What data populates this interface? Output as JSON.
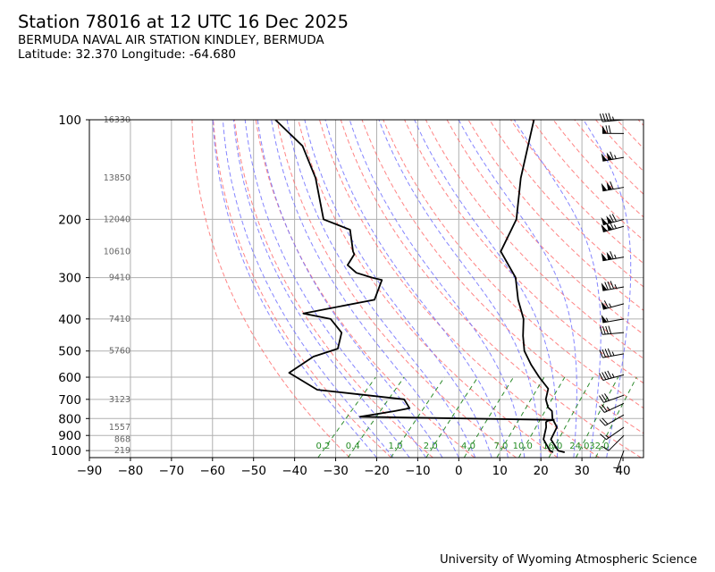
{
  "header": {
    "title": "Station 78016 at 12 UTC 16 Dec 2025",
    "station": "BERMUDA NAVAL AIR STATION KINDLEY, BERMUDA",
    "location": "Latitude: 32.370 Longitude: -64.680"
  },
  "footer": {
    "credit": "University of Wyoming Atmospheric Science"
  },
  "chart_data": {
    "type": "line",
    "chart_kind": "skew-T log-P sounding",
    "x": {
      "label": "",
      "unit": "°C",
      "lim": [
        -90,
        45
      ],
      "ticks": [
        -90,
        -80,
        -70,
        -60,
        -50,
        -40,
        -30,
        -20,
        -10,
        0,
        10,
        20,
        30,
        40
      ]
    },
    "y": {
      "label": "",
      "unit": "hPa",
      "scale": "log",
      "lim": [
        1050,
        100
      ],
      "ticks": [
        100,
        200,
        300,
        400,
        500,
        600,
        700,
        800,
        900,
        1000
      ]
    },
    "grid": true,
    "colors": {
      "profile": "#000000",
      "dry_adiabat": "#ff6f6f",
      "moist_adiabat": "#7070ff",
      "mixing_ratio": "#2e8b2e",
      "mixing_ratio_label": "#228b22",
      "height_label": "#666666"
    },
    "height_labels": [
      {
        "p": 100,
        "text": "16330"
      },
      {
        "p": 150,
        "text": "13850"
      },
      {
        "p": 200,
        "text": "12040"
      },
      {
        "p": 250,
        "text": "10610"
      },
      {
        "p": 300,
        "text": "9410"
      },
      {
        "p": 400,
        "text": "7410"
      },
      {
        "p": 500,
        "text": "5760"
      },
      {
        "p": 700,
        "text": "3123"
      },
      {
        "p": 850,
        "text": "1557"
      },
      {
        "p": 925,
        "text": "868"
      },
      {
        "p": 1000,
        "text": "219"
      }
    ],
    "mixing_ratio_labels": [
      "0.2",
      "0.4",
      "1.0",
      "2.0",
      "4.0",
      "7.0",
      "10.0",
      "16.0",
      "24.0",
      "32.0"
    ],
    "temperature": [
      {
        "p": 1012,
        "t": 24.5
      },
      {
        "p": 1000,
        "t": 22.5
      },
      {
        "p": 925,
        "t": 18
      },
      {
        "p": 850,
        "t": 16.5
      },
      {
        "p": 800,
        "t": 13.3
      },
      {
        "p": 760,
        "t": 11.4
      },
      {
        "p": 740,
        "t": 9.5
      },
      {
        "p": 700,
        "t": 7
      },
      {
        "p": 650,
        "t": 5
      },
      {
        "p": 600,
        "t": 0
      },
      {
        "p": 550,
        "t": -5
      },
      {
        "p": 500,
        "t": -10
      },
      {
        "p": 450,
        "t": -14
      },
      {
        "p": 400,
        "t": -18
      },
      {
        "p": 350,
        "t": -24
      },
      {
        "p": 300,
        "t": -30
      },
      {
        "p": 250,
        "t": -40
      },
      {
        "p": 200,
        "t": -44
      },
      {
        "p": 150,
        "t": -53
      },
      {
        "p": 100,
        "t": -64
      }
    ],
    "dewpoint": [
      {
        "p": 1012,
        "t": 21.7
      },
      {
        "p": 1000,
        "t": 20.5
      },
      {
        "p": 925,
        "t": 16.2
      },
      {
        "p": 850,
        "t": 13.9
      },
      {
        "p": 820,
        "t": 12.6
      },
      {
        "p": 812,
        "t": 12.7
      },
      {
        "p": 808,
        "t": 14
      },
      {
        "p": 800,
        "t": -7
      },
      {
        "p": 790,
        "t": -34
      },
      {
        "p": 760,
        "t": -27
      },
      {
        "p": 745,
        "t": -24
      },
      {
        "p": 700,
        "t": -27.5
      },
      {
        "p": 655,
        "t": -51
      },
      {
        "p": 582,
        "t": -62
      },
      {
        "p": 520,
        "t": -60
      },
      {
        "p": 492,
        "t": -56
      },
      {
        "p": 440,
        "t": -59
      },
      {
        "p": 400,
        "t": -65
      },
      {
        "p": 385,
        "t": -73
      },
      {
        "p": 350,
        "t": -59
      },
      {
        "p": 305,
        "t": -62
      },
      {
        "p": 300,
        "t": -65
      },
      {
        "p": 290,
        "t": -70
      },
      {
        "p": 275,
        "t": -74
      },
      {
        "p": 255,
        "t": -75
      },
      {
        "p": 250,
        "t": -76
      },
      {
        "p": 215,
        "t": -82
      },
      {
        "p": 200,
        "t": -91
      },
      {
        "p": 150,
        "t": -103
      },
      {
        "p": 120,
        "t": -114
      },
      {
        "p": 100,
        "t": -127
      }
    ],
    "wind_barbs": [
      {
        "p": 100,
        "dir": 265,
        "kt": 45
      },
      {
        "p": 110,
        "dir": 270,
        "kt": 70
      },
      {
        "p": 130,
        "dir": 260,
        "kt": 115
      },
      {
        "p": 160,
        "dir": 260,
        "kt": 110
      },
      {
        "p": 200,
        "dir": 255,
        "kt": 120
      },
      {
        "p": 210,
        "dir": 255,
        "kt": 115
      },
      {
        "p": 260,
        "dir": 260,
        "kt": 115
      },
      {
        "p": 320,
        "dir": 260,
        "kt": 85
      },
      {
        "p": 360,
        "dir": 255,
        "kt": 65
      },
      {
        "p": 400,
        "dir": 260,
        "kt": 55
      },
      {
        "p": 440,
        "dir": 265,
        "kt": 40
      },
      {
        "p": 510,
        "dir": 260,
        "kt": 45
      },
      {
        "p": 590,
        "dir": 255,
        "kt": 45
      },
      {
        "p": 680,
        "dir": 250,
        "kt": 30
      },
      {
        "p": 720,
        "dir": 245,
        "kt": 25
      },
      {
        "p": 780,
        "dir": 240,
        "kt": 20
      },
      {
        "p": 850,
        "dir": 235,
        "kt": 15
      },
      {
        "p": 900,
        "dir": 225,
        "kt": 10
      },
      {
        "p": 1000,
        "dir": 200,
        "kt": 5
      }
    ]
  }
}
